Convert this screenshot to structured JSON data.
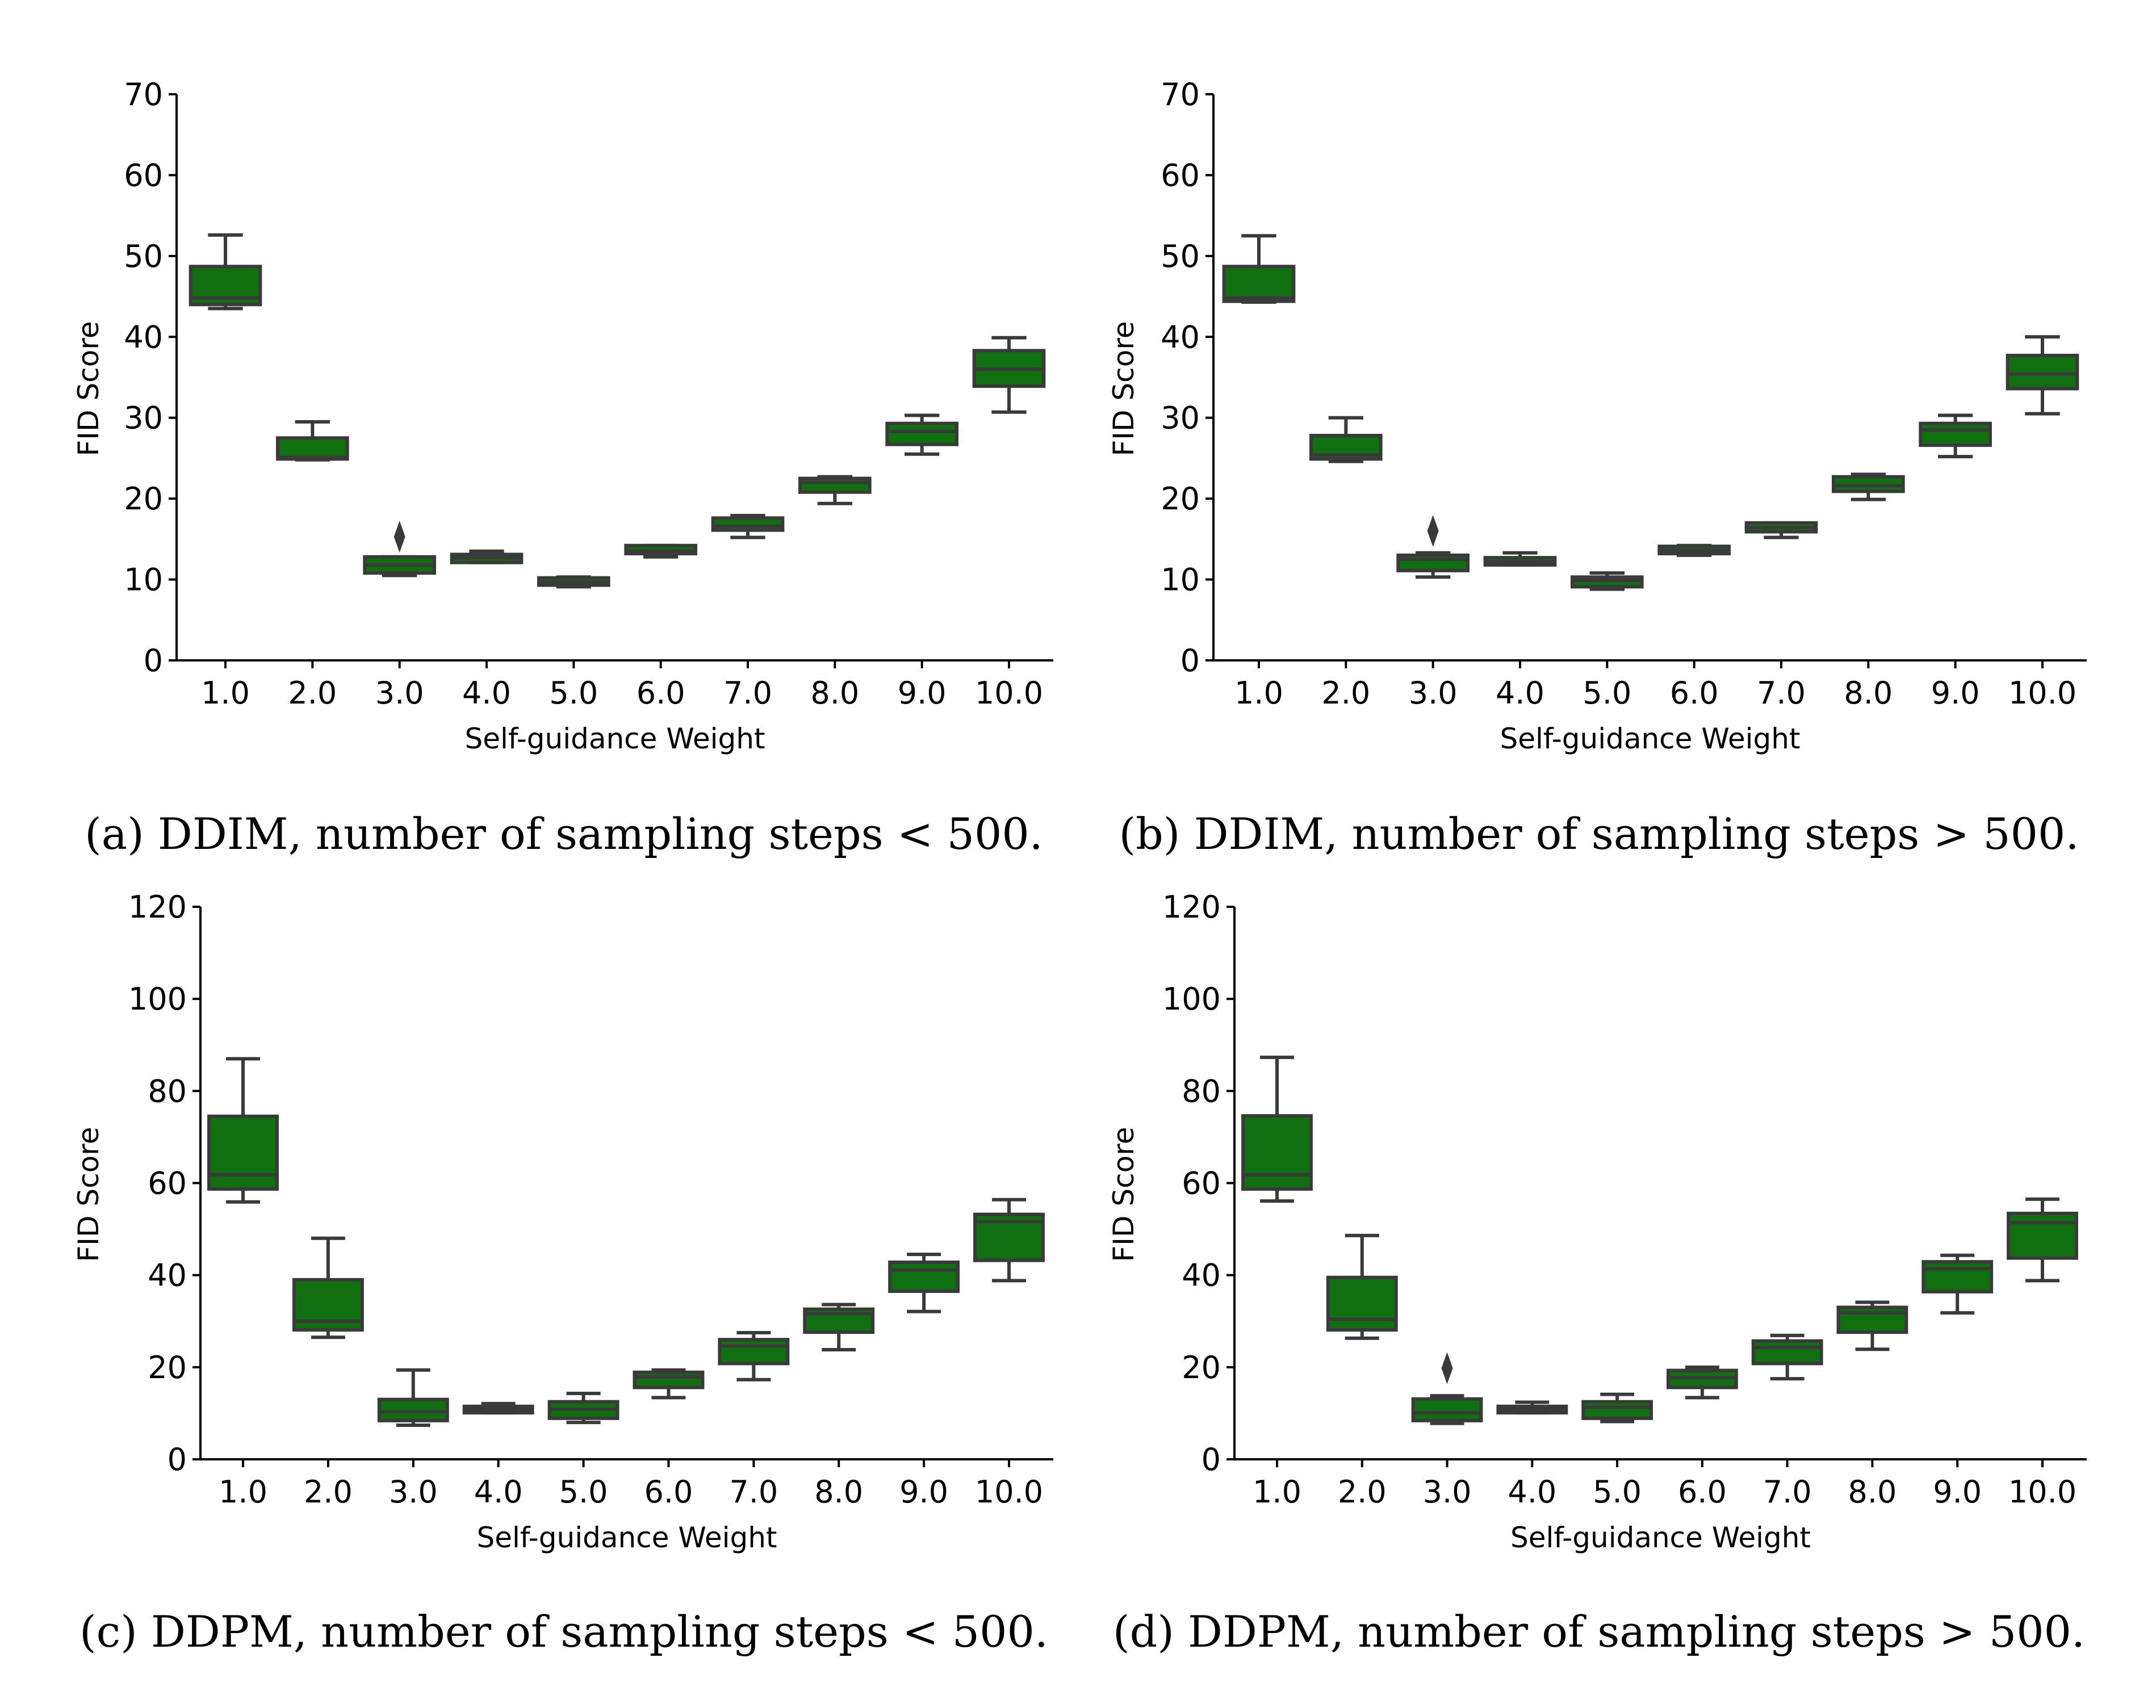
{
  "chart_data": [
    {
      "type": "box",
      "caption": "(a) DDIM, number of sampling steps < 500.",
      "xlabel": "Self-guidance Weight",
      "ylabel": "FID Score",
      "ylim": [
        0,
        70
      ],
      "yticks": [
        0,
        10,
        20,
        30,
        40,
        50,
        60,
        70
      ],
      "categories": [
        "1.0",
        "2.0",
        "3.0",
        "4.0",
        "5.0",
        "6.0",
        "7.0",
        "8.0",
        "9.0",
        "10.0"
      ],
      "boxes": [
        {
          "whislo": 43.5,
          "q1": 44.0,
          "med": 44.8,
          "q3": 48.7,
          "whishi": 52.6,
          "fliers": []
        },
        {
          "whislo": 24.8,
          "q1": 24.9,
          "med": 25.1,
          "q3": 27.5,
          "whishi": 29.5,
          "fliers": []
        },
        {
          "whislo": 10.5,
          "q1": 10.8,
          "med": 11.8,
          "q3": 12.8,
          "whishi": 12.8,
          "fliers": [
            15.3
          ]
        },
        {
          "whislo": 12.1,
          "q1": 12.1,
          "med": 12.7,
          "q3": 13.1,
          "whishi": 13.5,
          "fliers": []
        },
        {
          "whislo": 9.1,
          "q1": 9.3,
          "med": 9.7,
          "q3": 10.2,
          "whishi": 10.3,
          "fliers": []
        },
        {
          "whislo": 12.8,
          "q1": 13.2,
          "med": 13.5,
          "q3": 14.2,
          "whishi": 14.2,
          "fliers": []
        },
        {
          "whislo": 15.2,
          "q1": 16.1,
          "med": 16.6,
          "q3": 17.6,
          "whishi": 17.9,
          "fliers": []
        },
        {
          "whislo": 19.4,
          "q1": 20.8,
          "med": 22.0,
          "q3": 22.5,
          "whishi": 22.7,
          "fliers": []
        },
        {
          "whislo": 25.5,
          "q1": 26.7,
          "med": 28.3,
          "q3": 29.3,
          "whishi": 30.3,
          "fliers": []
        },
        {
          "whislo": 30.7,
          "q1": 33.9,
          "med": 36.0,
          "q3": 38.3,
          "whishi": 39.9,
          "fliers": []
        }
      ]
    },
    {
      "type": "box",
      "caption": "(b) DDIM, number of sampling steps > 500.",
      "xlabel": "Self-guidance Weight",
      "ylabel": "FID Score",
      "ylim": [
        0,
        70
      ],
      "yticks": [
        0,
        10,
        20,
        30,
        40,
        50,
        60,
        70
      ],
      "categories": [
        "1.0",
        "2.0",
        "3.0",
        "4.0",
        "5.0",
        "6.0",
        "7.0",
        "8.0",
        "9.0",
        "10.0"
      ],
      "boxes": [
        {
          "whislo": 44.3,
          "q1": 44.4,
          "med": 44.8,
          "q3": 48.7,
          "whishi": 52.5,
          "fliers": []
        },
        {
          "whislo": 24.6,
          "q1": 24.9,
          "med": 25.4,
          "q3": 27.8,
          "whishi": 30.0,
          "fliers": []
        },
        {
          "whislo": 10.3,
          "q1": 11.1,
          "med": 12.5,
          "q3": 13.0,
          "whishi": 13.3,
          "fliers": [
            16.0
          ]
        },
        {
          "whislo": 11.8,
          "q1": 11.8,
          "med": 12.2,
          "q3": 12.7,
          "whishi": 13.3,
          "fliers": []
        },
        {
          "whislo": 8.8,
          "q1": 9.1,
          "med": 9.9,
          "q3": 10.3,
          "whishi": 10.8,
          "fliers": []
        },
        {
          "whislo": 13.0,
          "q1": 13.2,
          "med": 13.6,
          "q3": 14.1,
          "whishi": 14.2,
          "fliers": []
        },
        {
          "whislo": 15.2,
          "q1": 15.9,
          "med": 16.4,
          "q3": 17.0,
          "whishi": 17.0,
          "fliers": []
        },
        {
          "whislo": 19.9,
          "q1": 20.9,
          "med": 21.6,
          "q3": 22.7,
          "whishi": 23.0,
          "fliers": []
        },
        {
          "whislo": 25.2,
          "q1": 26.6,
          "med": 28.5,
          "q3": 29.3,
          "whishi": 30.3,
          "fliers": []
        },
        {
          "whislo": 30.5,
          "q1": 33.6,
          "med": 35.4,
          "q3": 37.7,
          "whishi": 40.0,
          "fliers": []
        }
      ]
    },
    {
      "type": "box",
      "caption": "(c) DDPM, number of sampling steps < 500.",
      "xlabel": "Self-guidance Weight",
      "ylabel": "FID Score",
      "ylim": [
        0,
        120
      ],
      "yticks": [
        0,
        20,
        40,
        60,
        80,
        100,
        120
      ],
      "categories": [
        "1.0",
        "2.0",
        "3.0",
        "4.0",
        "5.0",
        "6.0",
        "7.0",
        "8.0",
        "9.0",
        "10.0"
      ],
      "boxes": [
        {
          "whislo": 55.9,
          "q1": 58.7,
          "med": 61.8,
          "q3": 74.5,
          "whishi": 87.0,
          "fliers": []
        },
        {
          "whislo": 26.5,
          "q1": 28.1,
          "med": 30.0,
          "q3": 39.0,
          "whishi": 48.0,
          "fliers": []
        },
        {
          "whislo": 7.4,
          "q1": 8.4,
          "med": 10.3,
          "q3": 13.0,
          "whishi": 19.4,
          "fliers": []
        },
        {
          "whislo": 10.1,
          "q1": 10.1,
          "med": 10.9,
          "q3": 11.5,
          "whishi": 12.1,
          "fliers": []
        },
        {
          "whislo": 8.0,
          "q1": 8.9,
          "med": 10.9,
          "q3": 12.5,
          "whishi": 14.3,
          "fliers": []
        },
        {
          "whislo": 13.4,
          "q1": 15.6,
          "med": 17.9,
          "q3": 18.9,
          "whishi": 19.4,
          "fliers": []
        },
        {
          "whislo": 17.3,
          "q1": 20.8,
          "med": 24.6,
          "q3": 26.0,
          "whishi": 27.5,
          "fliers": []
        },
        {
          "whislo": 23.8,
          "q1": 27.6,
          "med": 31.6,
          "q3": 32.6,
          "whishi": 33.6,
          "fliers": []
        },
        {
          "whislo": 32.1,
          "q1": 36.5,
          "med": 41.1,
          "q3": 42.8,
          "whishi": 44.5,
          "fliers": []
        },
        {
          "whislo": 38.8,
          "q1": 43.2,
          "med": 51.6,
          "q3": 53.2,
          "whishi": 56.4,
          "fliers": []
        }
      ]
    },
    {
      "type": "box",
      "caption": "(d) DDPM, number of sampling steps > 500.",
      "xlabel": "Self-guidance Weight",
      "ylabel": "FID Score",
      "ylim": [
        0,
        120
      ],
      "yticks": [
        0,
        20,
        40,
        60,
        80,
        100,
        120
      ],
      "categories": [
        "1.0",
        "2.0",
        "3.0",
        "4.0",
        "5.0",
        "6.0",
        "7.0",
        "8.0",
        "9.0",
        "10.0"
      ],
      "boxes": [
        {
          "whislo": 56.1,
          "q1": 58.7,
          "med": 61.8,
          "q3": 74.6,
          "whishi": 87.3,
          "fliers": []
        },
        {
          "whislo": 26.3,
          "q1": 28.1,
          "med": 30.4,
          "q3": 39.5,
          "whishi": 48.6,
          "fliers": []
        },
        {
          "whislo": 7.8,
          "q1": 8.4,
          "med": 10.1,
          "q3": 13.1,
          "whishi": 13.8,
          "fliers": [
            19.8
          ]
        },
        {
          "whislo": 10.1,
          "q1": 10.1,
          "med": 10.9,
          "q3": 11.5,
          "whishi": 12.4,
          "fliers": []
        },
        {
          "whislo": 8.2,
          "q1": 8.9,
          "med": 11.3,
          "q3": 12.5,
          "whishi": 14.1,
          "fliers": []
        },
        {
          "whislo": 13.4,
          "q1": 15.6,
          "med": 17.7,
          "q3": 19.3,
          "whishi": 20.0,
          "fliers": []
        },
        {
          "whislo": 17.5,
          "q1": 20.8,
          "med": 24.3,
          "q3": 25.7,
          "whishi": 26.9,
          "fliers": []
        },
        {
          "whislo": 23.9,
          "q1": 27.6,
          "med": 31.8,
          "q3": 33.0,
          "whishi": 34.1,
          "fliers": []
        },
        {
          "whislo": 31.8,
          "q1": 36.4,
          "med": 41.4,
          "q3": 42.9,
          "whishi": 44.3,
          "fliers": []
        },
        {
          "whislo": 38.8,
          "q1": 43.7,
          "med": 51.4,
          "q3": 53.4,
          "whishi": 56.5,
          "fliers": []
        }
      ]
    }
  ],
  "colors": {
    "box_fill": "#107010",
    "box_edge": "#3a3a3a",
    "axis": "#000000"
  },
  "grid": false,
  "legend": "none"
}
